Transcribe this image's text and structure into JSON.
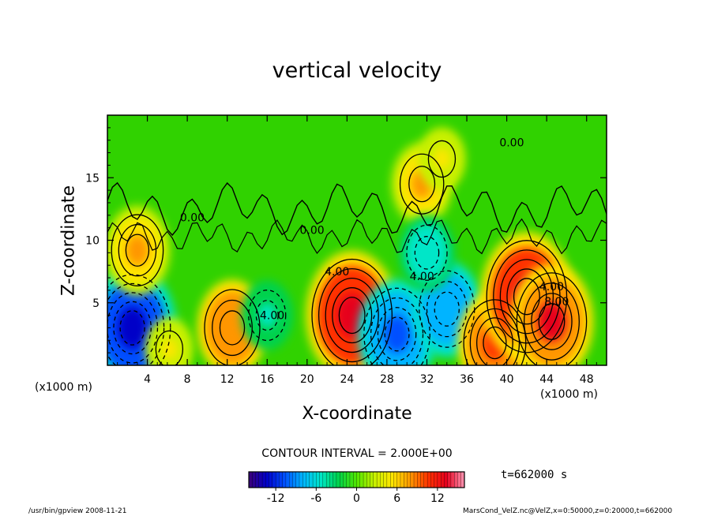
{
  "chart_data": {
    "type": "heatmap",
    "title": "vertical velocity",
    "xlabel": "X-coordinate",
    "ylabel": "Z-coordinate",
    "x_unit_label": "(x1000 m)",
    "xlim": [
      0,
      50
    ],
    "ylim": [
      0,
      20
    ],
    "x_ticks": [
      4,
      8,
      12,
      16,
      20,
      24,
      28,
      32,
      36,
      40,
      44,
      48
    ],
    "y_ticks": [
      5,
      10,
      15
    ],
    "contour_interval_label": "CONTOUR INTERVAL = 2.000E+00",
    "contour_labels": [
      "4.00",
      "4.00",
      "4.00",
      "4.00",
      "8.00",
      "0.00",
      "0.00",
      "0.00"
    ],
    "colorbar": {
      "range": [
        -16,
        16
      ],
      "ticks": [
        -12,
        -6,
        0,
        6,
        12
      ],
      "colors": [
        "#3c0078",
        "#0000c8",
        "#0050ff",
        "#00b4ff",
        "#00e6c8",
        "#00d24b",
        "#50e600",
        "#c8f000",
        "#ffe600",
        "#ff9600",
        "#ff3200",
        "#e6001e",
        "#ff96b4"
      ]
    },
    "features": [
      {
        "x": 2.5,
        "z": 3.0,
        "value": -13
      },
      {
        "x": 3.0,
        "z": 9.2,
        "value": 8
      },
      {
        "x": 6.2,
        "z": 1.3,
        "value": 4
      },
      {
        "x": 12.5,
        "z": 3.0,
        "value": 9
      },
      {
        "x": 16.0,
        "z": 4.0,
        "value": -5
      },
      {
        "x": 24.5,
        "z": 4.0,
        "value": 14
      },
      {
        "x": 29.0,
        "z": 2.5,
        "value": -11
      },
      {
        "x": 34.0,
        "z": 4.5,
        "value": -9
      },
      {
        "x": 38.8,
        "z": 1.8,
        "value": 10
      },
      {
        "x": 42.0,
        "z": 5.5,
        "value": 14
      },
      {
        "x": 44.5,
        "z": 3.5,
        "value": 12
      },
      {
        "x": 31.5,
        "z": 14.5,
        "value": 7
      },
      {
        "x": 33.5,
        "z": 16.5,
        "value": 4
      },
      {
        "x": 32.0,
        "z": 9.0,
        "value": -6
      }
    ]
  },
  "annotations": {
    "time_label": "t=662000 s",
    "footer_left": "/usr/bin/gpview  2008-11-21",
    "footer_right": "MarsCond_VelZ.nc@VelZ,x=0:50000,z=0:20000,t=662000"
  }
}
